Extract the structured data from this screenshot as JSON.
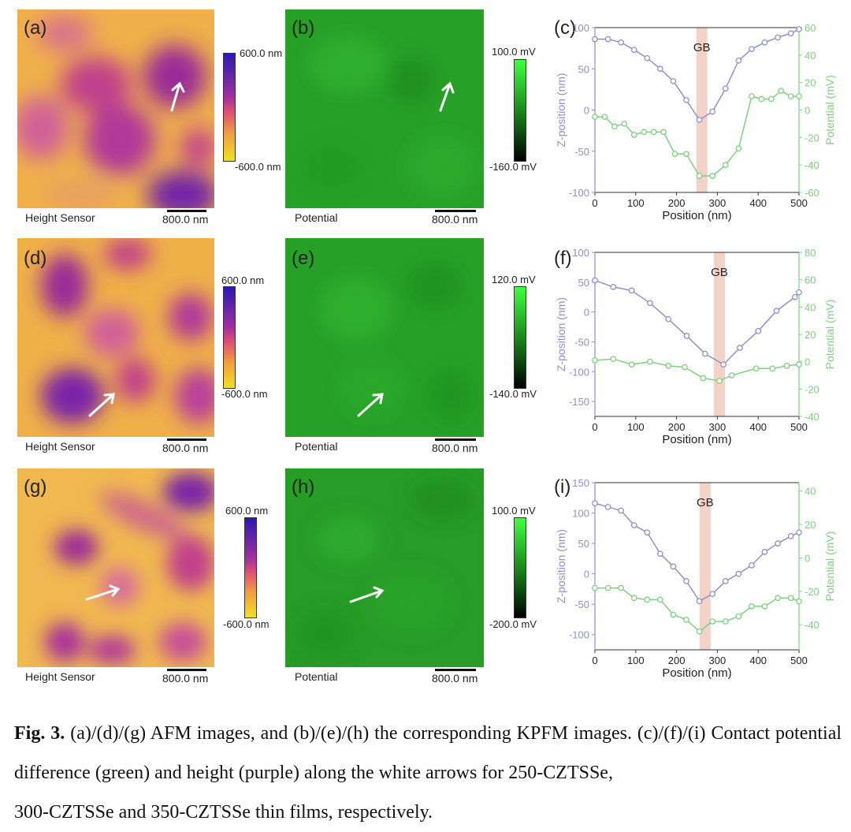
{
  "rows": [
    {
      "afm_label": "(a)",
      "kpfm_label": "(b)",
      "plot_label": "(c)",
      "afm_caption": "Height Sensor",
      "kpfm_caption": "Potential",
      "afm_scale": "800.0 nm",
      "kpfm_scale": "800.0 nm",
      "afm_cbar_top": "600.0 nm",
      "afm_cbar_bottom": "-600.0 nm",
      "kpfm_cbar_top": "100.0 mV",
      "kpfm_cbar_bottom": "-160.0 mV"
    },
    {
      "afm_label": "(d)",
      "kpfm_label": "(e)",
      "plot_label": "(f)",
      "afm_caption": "Height Sensor",
      "kpfm_caption": "Potential",
      "afm_scale": "800.0 nm",
      "kpfm_scale": "800.0 nm",
      "afm_cbar_top": "600.0 nm",
      "afm_cbar_bottom": "-600.0 nm",
      "kpfm_cbar_top": "120.0 mV",
      "kpfm_cbar_bottom": "-140.0 mV"
    },
    {
      "afm_label": "(g)",
      "kpfm_label": "(h)",
      "plot_label": "(i)",
      "afm_caption": "Height Sensor",
      "kpfm_caption": "Potential",
      "afm_scale": "800.0 nm",
      "kpfm_scale": "800.0 nm",
      "afm_cbar_top": "600.0 nm",
      "afm_cbar_bottom": "-600.0 nm",
      "kpfm_cbar_top": "100.0 mV",
      "kpfm_cbar_bottom": "-200.0 mV"
    }
  ],
  "chart_data": [
    {
      "type": "line",
      "panel": "(c)",
      "gb_label": "GB",
      "gb_x": 262,
      "xlabel": "Position (nm)",
      "ylabel_left": "Z-position (nm)",
      "ylabel_right": "Potential (mV)",
      "xlim": [
        0,
        500
      ],
      "ylim_left": [
        -100,
        100
      ],
      "ylim_right": [
        -60,
        60
      ],
      "xticks": [
        0,
        100,
        200,
        300,
        400,
        500
      ],
      "yticks_left": [
        -100,
        -50,
        0,
        50,
        100
      ],
      "yticks_right": [
        -60,
        -40,
        -20,
        0,
        20,
        40,
        60
      ],
      "colors": {
        "height": "#8e90c8",
        "potential": "#7fcf7f"
      },
      "series": [
        {
          "name": "height",
          "axis": "left",
          "x": [
            0,
            32,
            64,
            96,
            128,
            160,
            192,
            224,
            256,
            288,
            320,
            352,
            384,
            416,
            448,
            480,
            500
          ],
          "y": [
            86,
            86,
            82,
            73,
            63,
            50,
            35,
            12,
            -12,
            -2,
            26,
            60,
            74,
            82,
            88,
            93,
            98
          ]
        },
        {
          "name": "potential",
          "axis": "right",
          "x": [
            0,
            24,
            48,
            72,
            96,
            120,
            144,
            168,
            196,
            224,
            256,
            288,
            320,
            352,
            384,
            408,
            432,
            456,
            480,
            500
          ],
          "y": [
            -5,
            -5,
            -12,
            -10,
            -18,
            -16,
            -16,
            -16,
            -32,
            -32,
            -48,
            -48,
            -40,
            -28,
            10,
            8,
            8,
            14,
            10,
            10
          ]
        }
      ]
    },
    {
      "type": "line",
      "panel": "(f)",
      "gb_label": "GB",
      "gb_x": 305,
      "xlabel": "Position (nm)",
      "ylabel_left": "Z-position (nm)",
      "ylabel_right": "Potential (mV)",
      "xlim": [
        0,
        500
      ],
      "ylim_left": [
        -175,
        100
      ],
      "ylim_right": [
        -40,
        80
      ],
      "xticks": [
        0,
        100,
        200,
        300,
        400,
        500
      ],
      "yticks_left": [
        -150,
        -100,
        -50,
        0,
        50,
        100
      ],
      "yticks_right": [
        -40,
        -20,
        0,
        20,
        40,
        60,
        80
      ],
      "colors": {
        "height": "#8e90c8",
        "potential": "#7fcf7f"
      },
      "series": [
        {
          "name": "height",
          "axis": "left",
          "x": [
            0,
            45,
            90,
            135,
            180,
            225,
            270,
            315,
            355,
            400,
            445,
            490,
            500
          ],
          "y": [
            53,
            42,
            36,
            15,
            -12,
            -40,
            -70,
            -88,
            -60,
            -32,
            2,
            25,
            33
          ]
        },
        {
          "name": "potential",
          "axis": "right",
          "x": [
            0,
            45,
            90,
            135,
            180,
            220,
            265,
            305,
            335,
            395,
            435,
            470,
            500
          ],
          "y": [
            1,
            2,
            -2,
            0,
            -3,
            -4,
            -12,
            -14,
            -10,
            -5,
            -5,
            -3,
            -2
          ]
        }
      ]
    },
    {
      "type": "line",
      "panel": "(i)",
      "gb_label": "GB",
      "gb_x": 270,
      "xlabel": "Position (nm)",
      "ylabel_left": "Z-position (nm)",
      "ylabel_right": "Potential (mV)",
      "xlim": [
        0,
        500
      ],
      "ylim_left": [
        -125,
        150
      ],
      "ylim_right": [
        -55,
        45
      ],
      "xticks": [
        0,
        100,
        200,
        300,
        400,
        500
      ],
      "yticks_left": [
        -100,
        -50,
        0,
        50,
        100,
        150
      ],
      "yticks_right": [
        -40,
        -20,
        0,
        20,
        40
      ],
      "colors": {
        "height": "#8e90c8",
        "potential": "#7fcf7f"
      },
      "series": [
        {
          "name": "height",
          "axis": "left",
          "x": [
            0,
            32,
            64,
            96,
            128,
            160,
            192,
            224,
            256,
            288,
            320,
            352,
            384,
            416,
            448,
            480,
            500
          ],
          "y": [
            116,
            110,
            104,
            80,
            68,
            33,
            12,
            -12,
            -45,
            -33,
            -12,
            0,
            14,
            36,
            50,
            62,
            68
          ]
        },
        {
          "name": "potential",
          "axis": "right",
          "x": [
            0,
            32,
            64,
            96,
            128,
            160,
            192,
            224,
            256,
            288,
            320,
            352,
            384,
            416,
            448,
            480,
            500
          ],
          "y": [
            -18,
            -18,
            -18,
            -24,
            -25,
            -25,
            -34,
            -37,
            -44,
            -38,
            -38,
            -35,
            -29,
            -29,
            -24,
            -24,
            -26
          ]
        }
      ]
    }
  ],
  "caption": {
    "fig_label": "Fig. 3.",
    "text": "(a)/(d)/(g) AFM images, and (b)/(e)/(h) the corresponding KPFM images. (c)/(f)/(i) Contact potential difference (green) and height (purple) along the white arrows for 250-CZTSSe,",
    "last_line": "300-CZTSSe and 350-CZTSSe thin films, respectively."
  }
}
